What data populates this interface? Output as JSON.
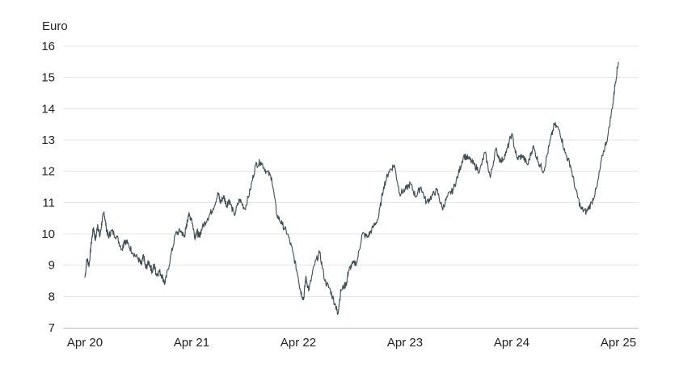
{
  "chart_data": {
    "type": "line",
    "ylabel": "Euro",
    "xlabel": "",
    "ylim": [
      7,
      16
    ],
    "y_ticks": [
      7,
      8,
      9,
      10,
      11,
      12,
      13,
      14,
      15,
      16
    ],
    "x_ticks": [
      {
        "label": "Apr 20",
        "x": 2020.25
      },
      {
        "label": "Apr 21",
        "x": 2021.25
      },
      {
        "label": "Apr 22",
        "x": 2022.25
      },
      {
        "label": "Apr 23",
        "x": 2023.25
      },
      {
        "label": "Apr 24",
        "x": 2024.25
      },
      {
        "label": "Apr 25",
        "x": 2025.25
      }
    ],
    "xlim": [
      2020.25,
      2025.25
    ],
    "grid": "horizontal",
    "colors": {
      "line": "#3c4b50",
      "grid": "#e3e3e3",
      "axis": "#bdbdbd"
    },
    "series": [
      {
        "x": [
          2020.25,
          2020.27,
          2020.29,
          2020.31,
          2020.33,
          2020.35,
          2020.37,
          2020.39,
          2020.41,
          2020.43,
          2020.45,
          2020.47,
          2020.5,
          2020.55,
          2020.6,
          2020.62,
          2020.65,
          2020.7,
          2020.75,
          2020.78,
          2020.8,
          2020.82,
          2020.85,
          2020.88,
          2020.9,
          2020.92,
          2020.95,
          2020.98,
          2021.0,
          2021.05,
          2021.1,
          2021.15,
          2021.18,
          2021.2,
          2021.22,
          2021.25,
          2021.28,
          2021.3,
          2021.32,
          2021.35,
          2021.4,
          2021.45,
          2021.5,
          2021.52,
          2021.55,
          2021.58,
          2021.6,
          2021.65,
          2021.7,
          2021.75,
          2021.8,
          2021.85,
          2021.9,
          2021.95,
          2022.0,
          2022.05,
          2022.1,
          2022.15,
          2022.2,
          2022.25,
          2022.27,
          2022.3,
          2022.32,
          2022.35,
          2022.4,
          2022.45,
          2022.5,
          2022.55,
          2022.6,
          2022.62,
          2022.65,
          2022.7,
          2022.72,
          2022.75,
          2022.8,
          2022.85,
          2022.9,
          2022.95,
          2023.0,
          2023.05,
          2023.1,
          2023.15,
          2023.2,
          2023.25,
          2023.3,
          2023.35,
          2023.4,
          2023.45,
          2023.5,
          2023.55,
          2023.6,
          2023.65,
          2023.7,
          2023.75,
          2023.8,
          2023.85,
          2023.9,
          2023.95,
          2024.0,
          2024.05,
          2024.1,
          2024.15,
          2024.2,
          2024.25,
          2024.3,
          2024.35,
          2024.4,
          2024.45,
          2024.5,
          2024.55,
          2024.6,
          2024.65,
          2024.7,
          2024.75,
          2024.8,
          2024.85,
          2024.9,
          2024.95,
          2025.0,
          2025.05,
          2025.1,
          2025.15,
          2025.2,
          2025.22,
          2025.25
        ],
        "values": [
          8.6,
          9.2,
          9.0,
          9.7,
          10.2,
          9.8,
          10.3,
          9.9,
          10.4,
          10.7,
          10.2,
          9.9,
          10.1,
          9.9,
          9.5,
          9.8,
          9.7,
          9.4,
          9.2,
          9.0,
          9.3,
          8.9,
          9.1,
          8.8,
          9.0,
          8.7,
          8.8,
          8.6,
          8.4,
          9.2,
          10.0,
          10.1,
          9.9,
          10.2,
          10.6,
          10.5,
          9.9,
          10.1,
          9.9,
          10.2,
          10.5,
          10.8,
          11.3,
          11.0,
          11.2,
          10.9,
          11.1,
          10.6,
          11.1,
          10.8,
          11.4,
          12.2,
          12.3,
          12.0,
          11.8,
          10.6,
          10.3,
          10.0,
          9.4,
          8.6,
          8.2,
          7.9,
          8.6,
          8.2,
          9.0,
          9.4,
          8.5,
          8.2,
          7.7,
          7.45,
          8.2,
          8.4,
          8.8,
          9.0,
          9.1,
          10.0,
          9.9,
          10.2,
          10.5,
          11.5,
          12.0,
          12.2,
          11.3,
          11.4,
          11.6,
          11.2,
          11.5,
          11.0,
          11.2,
          11.4,
          10.8,
          11.2,
          11.4,
          11.9,
          12.5,
          12.4,
          12.2,
          12.0,
          12.6,
          11.8,
          12.7,
          12.3,
          12.6,
          13.2,
          12.4,
          12.5,
          12.2,
          12.8,
          12.3,
          12.0,
          12.8,
          13.5,
          13.3,
          12.6,
          12.2,
          11.4,
          10.8,
          10.7,
          11.0,
          11.5,
          12.5,
          13.1,
          14.2,
          14.8,
          15.5
        ]
      }
    ]
  }
}
